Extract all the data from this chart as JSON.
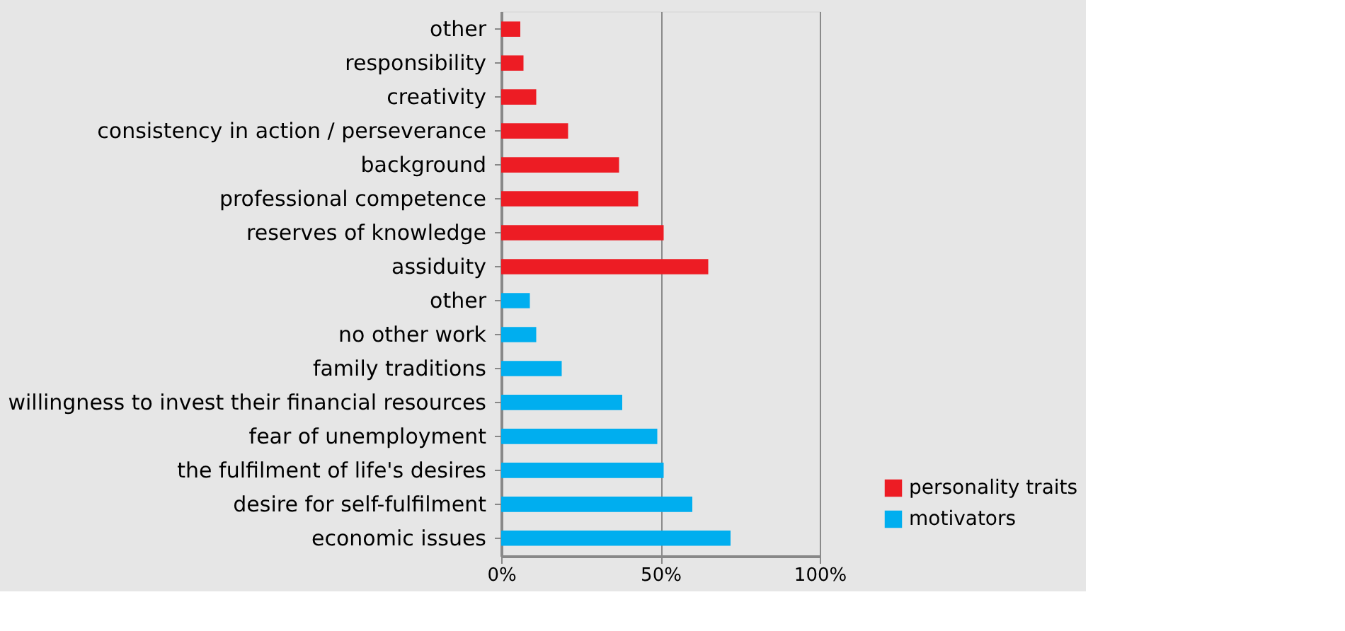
{
  "chart_data": {
    "type": "bar",
    "orientation": "horizontal",
    "categories": [
      "other",
      "responsibility",
      "creativity",
      "consistency in action / perseverance",
      "background",
      "professional competence",
      "reserves of knowledge",
      "assiduity",
      "other",
      "no other work",
      "family traditions",
      "willingness to invest their financial resources",
      "fear of unemployment",
      "the fulfilment of life's desires",
      "desire for self-fulfilment",
      "economic issues"
    ],
    "series": [
      {
        "name": "personality traits",
        "color": "#ed1c24",
        "values": [
          6,
          7,
          11,
          21,
          37,
          43,
          51,
          65,
          null,
          null,
          null,
          null,
          null,
          null,
          null,
          null
        ]
      },
      {
        "name": "motivators",
        "color": "#00aeef",
        "values": [
          null,
          null,
          null,
          null,
          null,
          null,
          null,
          null,
          9,
          11,
          19,
          38,
          49,
          51,
          60,
          72
        ]
      }
    ],
    "xlim": [
      0,
      100
    ],
    "xticks": [
      {
        "value": 0,
        "label": "0%"
      },
      {
        "value": 50,
        "label": "50%"
      },
      {
        "value": 100,
        "label": "100%"
      }
    ],
    "grid": "x",
    "legend": "bottom right"
  }
}
